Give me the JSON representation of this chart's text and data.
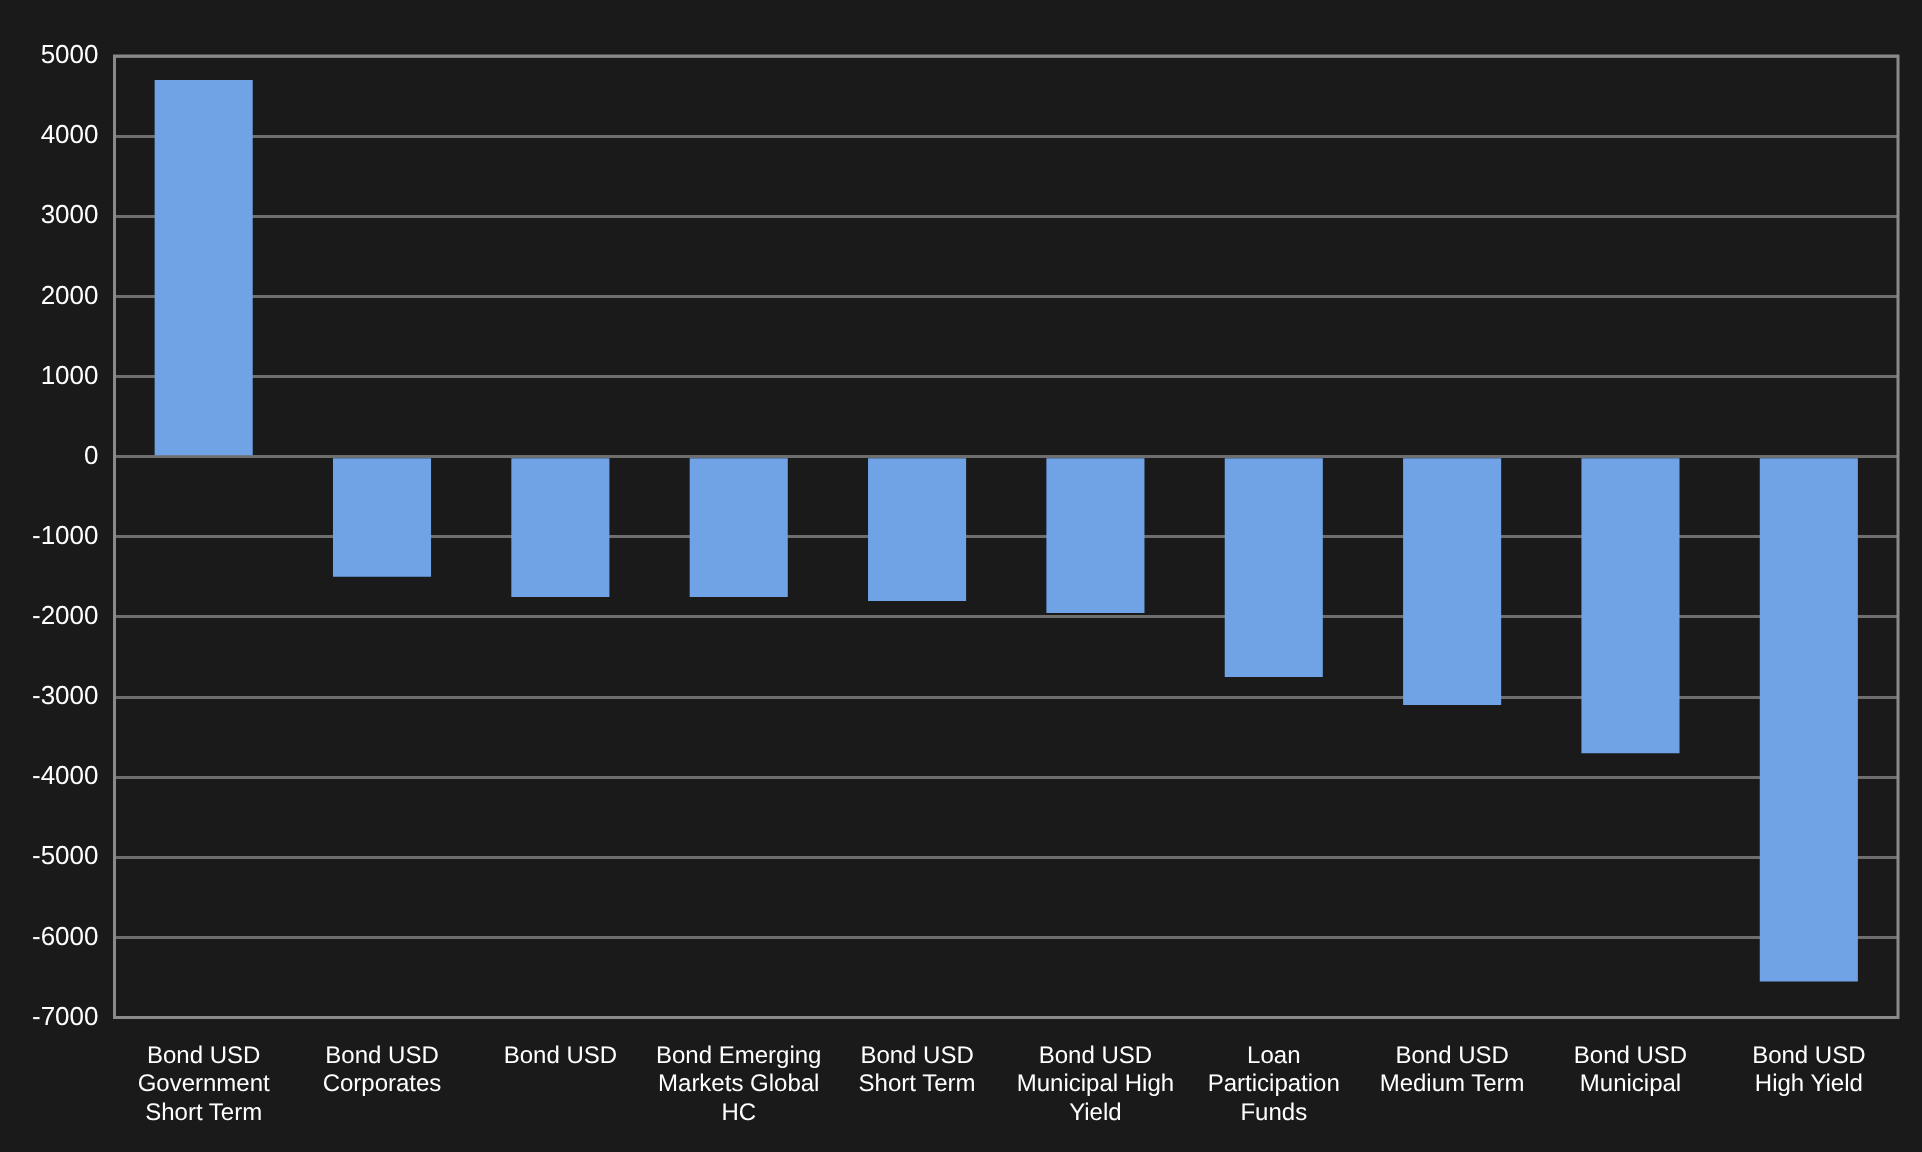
{
  "chart_data": {
    "type": "bar",
    "categories": [
      "Bond USD Government Short Term",
      "Bond USD Corporates",
      "Bond USD",
      "Bond Emerging Markets Global HC",
      "Bond USD Short Term",
      "Bond USD Municipal High Yield",
      "Loan Participation Funds",
      "Bond USD Medium Term",
      "Bond USD Municipal",
      "Bond USD High Yield"
    ],
    "values": [
      4700,
      -1500,
      -1750,
      -1750,
      -1800,
      -1950,
      -2750,
      -3100,
      -3700,
      -6550
    ],
    "color": "#6fa3e6",
    "ylim": [
      -7000,
      5000
    ],
    "yticks": [
      -7000,
      -6000,
      -5000,
      -4000,
      -3000,
      -2000,
      -1000,
      0,
      1000,
      2000,
      3000,
      4000,
      5000
    ],
    "grid": "y",
    "legend": false
  }
}
